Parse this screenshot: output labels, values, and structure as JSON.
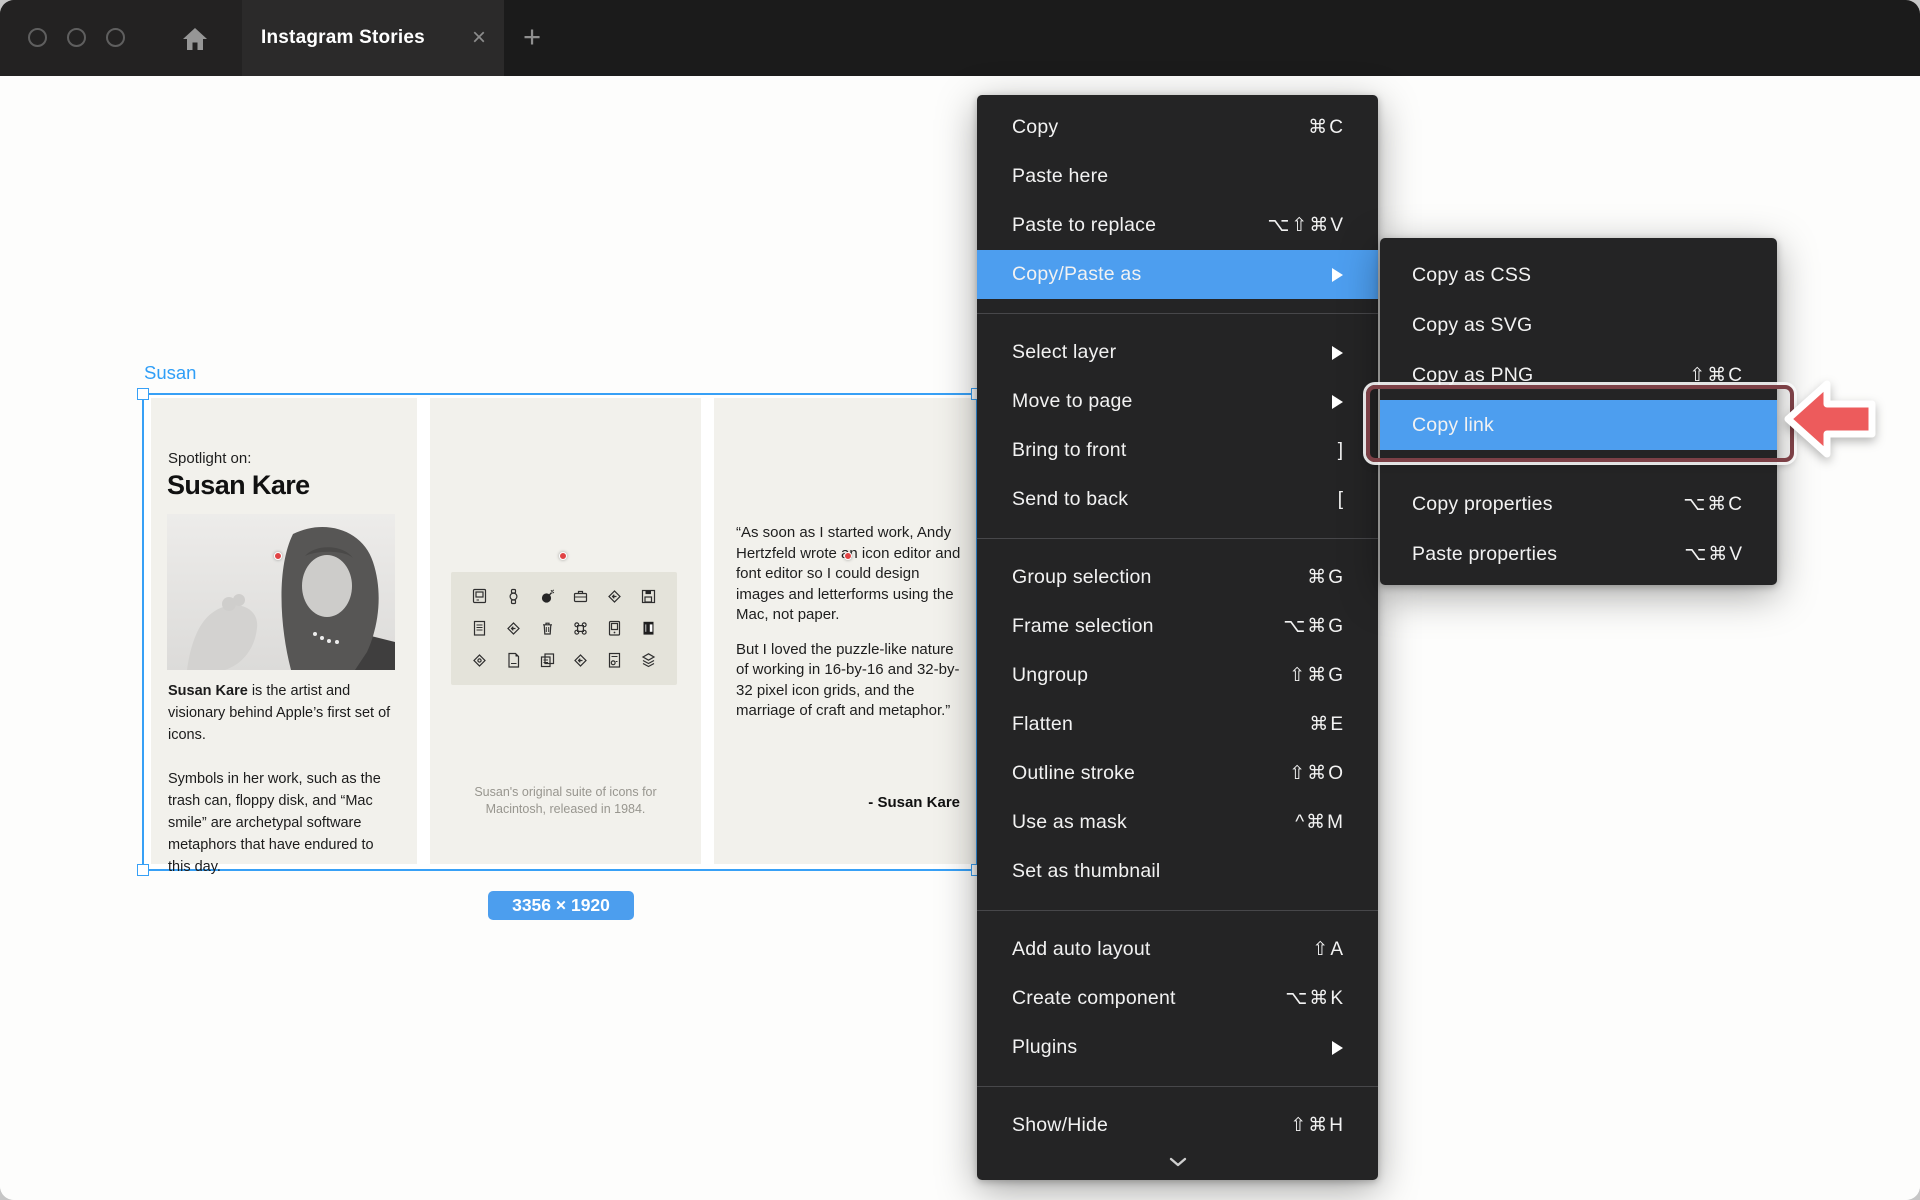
{
  "titlebar": {
    "tab_title": "Instagram Stories",
    "close_glyph": "×",
    "new_tab_glyph": "+"
  },
  "canvas": {
    "frame_label": "Susan",
    "dimension_badge": "3356 × 1920",
    "panel1": {
      "eyebrow": "Spotlight on:",
      "title": "Susan Kare",
      "body1_bold": "Susan Kare",
      "body1_rest": " is the artist and visionary behind Apple’s first set of icons.",
      "body2": "Symbols in her work, such as the trash can, floppy disk, and “Mac smile” are archetypal software metaphors that have endured to this day."
    },
    "panel2": {
      "caption_line1": "Susan's original suite of icons for",
      "caption_line2": "Macintosh, released in 1984.",
      "icons": [
        "macintosh",
        "watch",
        "bomb",
        "briefcase",
        "folder-send",
        "floppy-disk",
        "document-lines",
        "folder-send",
        "trash-can",
        "command-key",
        "macintosh-screen",
        "dark-door",
        "seal",
        "page-fold",
        "copy-stack",
        "folder-send",
        "document-badge",
        "layers"
      ]
    },
    "panel3": {
      "quote_para1": "“As soon as I started work, Andy Hertzfeld wrote an icon editor and font editor so I could design images and letterforms using the Mac, not paper.",
      "quote_para2": "But I loved the puzzle-like nature of working in 16-by-16 and 32-by-32 pixel icon grids, and the marriage of craft and metaphor.”",
      "attribution": "- Susan Kare"
    }
  },
  "context_menu": {
    "groups": [
      {
        "items": [
          {
            "label": "Copy",
            "shortcut": "⌘C"
          },
          {
            "label": "Paste here"
          },
          {
            "label": "Paste to replace",
            "shortcut": "⌥⇧⌘V"
          },
          {
            "label": "Copy/Paste as",
            "submenu": true,
            "highlighted": true
          }
        ]
      },
      {
        "items": [
          {
            "label": "Select layer",
            "submenu": true
          },
          {
            "label": "Move to page",
            "submenu": true
          },
          {
            "label": "Bring to front",
            "shortcut": "]"
          },
          {
            "label": "Send to back",
            "shortcut": "["
          }
        ]
      },
      {
        "items": [
          {
            "label": "Group selection",
            "shortcut": "⌘G"
          },
          {
            "label": "Frame selection",
            "shortcut": "⌥⌘G"
          },
          {
            "label": "Ungroup",
            "shortcut": "⇧⌘G"
          },
          {
            "label": "Flatten",
            "shortcut": "⌘E"
          },
          {
            "label": "Outline stroke",
            "shortcut": "⇧⌘O"
          },
          {
            "label": "Use as mask",
            "shortcut": "^⌘M"
          },
          {
            "label": "Set as thumbnail"
          }
        ]
      },
      {
        "items": [
          {
            "label": "Add auto layout",
            "shortcut": "⇧A"
          },
          {
            "label": "Create component",
            "shortcut": "⌥⌘K"
          },
          {
            "label": "Plugins",
            "submenu": true
          }
        ]
      },
      {
        "items": [
          {
            "label": "Show/Hide",
            "shortcut": "⇧⌘H"
          }
        ]
      }
    ],
    "has_more_indicator": true
  },
  "submenu": {
    "groups": [
      {
        "items": [
          {
            "label": "Copy as CSS"
          },
          {
            "label": "Copy as SVG"
          },
          {
            "label": "Copy as PNG",
            "shortcut": "⇧⌘C"
          },
          {
            "label": "Copy link",
            "highlighted": true
          }
        ]
      },
      {
        "items": [
          {
            "label": "Copy properties",
            "shortcut": "⌥⌘C"
          },
          {
            "label": "Paste properties",
            "shortcut": "⌥⌘V"
          }
        ]
      }
    ]
  },
  "colors": {
    "topbar_bg": "#1B1B1B",
    "active_tab_bg": "#2B2A2A",
    "menu_bg": "#242425",
    "menu_highlight": "#4D9EEF",
    "selection_blue": "#37A0F6",
    "badge_blue": "#4C9EEE",
    "annotation_maroon": "#7C4046",
    "annotation_arrow_red": "#ED5B5C",
    "marker_red": "#E04345",
    "panel_cream": "#F2F1EC"
  }
}
